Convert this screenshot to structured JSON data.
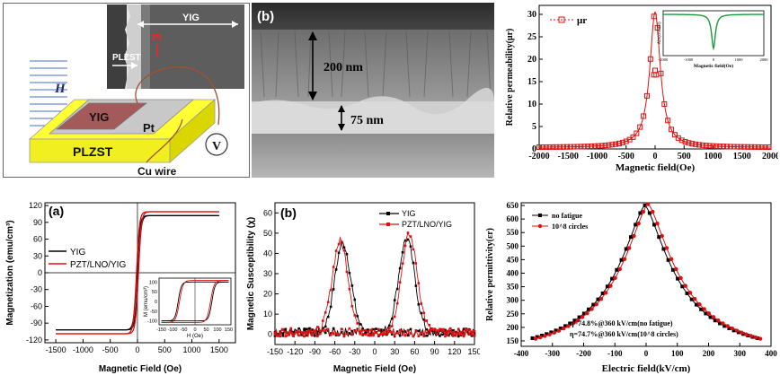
{
  "figure_a1": {
    "inset_labels": {
      "yig": "YIG",
      "pt": "Pt",
      "plzst": "PLZST"
    },
    "device_labels": {
      "yig": "YIG",
      "pt": "Pt",
      "plzst": "PLZST",
      "field": "H",
      "voltmeter": "V",
      "wire": "Cu wire"
    }
  },
  "figure_b1": {
    "panel_label": "(b)",
    "thickness_top": "200 nm",
    "thickness_bottom": "75 nm"
  },
  "chart_data": [
    {
      "id": "permeability",
      "type": "line",
      "xlabel": "Magnetic field(Oe)",
      "ylabel": "Relative permeability(μr)",
      "legend": [
        "μr"
      ],
      "xlim": [
        -2000,
        2000
      ],
      "ylim": [
        0,
        32
      ],
      "xticks": [
        -2000,
        -1500,
        -1000,
        -500,
        0,
        500,
        1000,
        1500,
        2000
      ],
      "yticks": [
        0,
        5,
        10,
        15,
        20,
        25,
        30
      ],
      "peak": 30.5,
      "inset": {
        "xlabel": "Magnetic field(Oe)",
        "ylabel": "Abs(dV/dH)",
        "xticks": [
          -2000,
          -1500,
          -1000,
          -500,
          0,
          500,
          1000,
          1500,
          2000
        ]
      }
    },
    {
      "id": "hysteresis",
      "type": "line",
      "panel_label": "(a)",
      "xlabel": "Magnetic Field (Oe)",
      "ylabel": "Magnetization (emu/cm³)",
      "xlim": [
        -1700,
        1800
      ],
      "ylim": [
        -125,
        125
      ],
      "xticks": [
        -1500,
        -1000,
        -500,
        0,
        500,
        1000,
        1500
      ],
      "yticks": [
        -120,
        -90,
        -60,
        -30,
        0,
        30,
        60,
        90,
        120
      ],
      "series": [
        {
          "name": "YIG",
          "color": "#000000",
          "ms": 102,
          "hc": 12
        },
        {
          "name": "PZT/LNO/YIG",
          "color": "#e01010",
          "ms": 109,
          "hc": 18
        }
      ],
      "inset": {
        "xlabel": "H (Oe)",
        "ylabel": "M (emu/cm³)",
        "xticks": [
          -150,
          -100,
          -50,
          0,
          50,
          100,
          150
        ],
        "yticks": [
          -100,
          -50,
          0,
          50,
          100
        ],
        "loop_hc": 75,
        "loop_ms": 100
      }
    },
    {
      "id": "susceptibility",
      "type": "line",
      "panel_label": "(b)",
      "xlabel": "Magnetic Field (Oe)",
      "ylabel": "Magnetic Susceptibility (χ)",
      "xlim": [
        -150,
        150
      ],
      "ylim": [
        -5,
        65
      ],
      "xticks": [
        -150,
        -120,
        -90,
        -60,
        -30,
        0,
        30,
        60,
        90,
        120,
        150
      ],
      "yticks": [
        0,
        10,
        20,
        30,
        40,
        50,
        60
      ],
      "series": [
        {
          "name": "YIG",
          "color": "#000000",
          "peaks": [
            {
              "x": -48,
              "y": 44
            },
            {
              "x": 48,
              "y": 46
            }
          ]
        },
        {
          "name": "PZT/LNO/YIG",
          "color": "#e01010",
          "peaks": [
            {
              "x": -52,
              "y": 45
            },
            {
              "x": 52,
              "y": 48
            }
          ]
        }
      ]
    },
    {
      "id": "permittivity",
      "type": "line",
      "xlabel": "Electric field(kV/cm)",
      "ylabel": "Relative permittivity(εr)",
      "xlim": [
        -400,
        400
      ],
      "ylim": [
        130,
        660
      ],
      "xticks": [
        -400,
        -300,
        -200,
        -100,
        0,
        100,
        200,
        300,
        400
      ],
      "yticks": [
        150,
        200,
        250,
        300,
        350,
        400,
        450,
        500,
        550,
        600,
        650
      ],
      "series": [
        {
          "name": "no fatigue",
          "color": "#000000",
          "peak": 650,
          "end": 160
        },
        {
          "name": "10^8 circles",
          "color": "#e01010",
          "peak": 655,
          "end": 158
        }
      ],
      "annotations": [
        "η=74.8%@360 kV/cm(no fatigue)",
        "η=74.7%@360 kV/cm(10^8 circles)"
      ]
    }
  ]
}
